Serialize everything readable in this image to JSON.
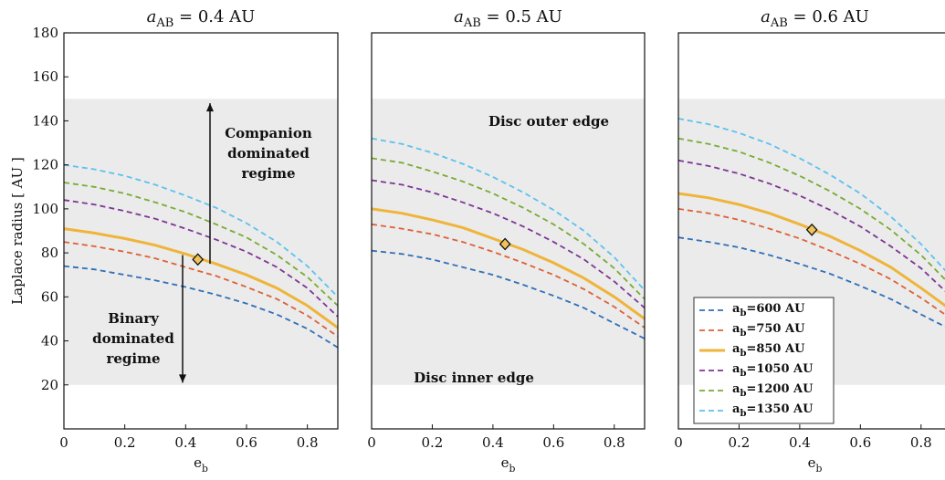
{
  "chart_data": [
    {
      "type": "line",
      "title_symbol": "a",
      "title_subscript": "AB",
      "title_value": "= 0.4 AU",
      "xlabel": "e",
      "xlabel_sub": "b",
      "ylabel": "Laplace radius [ AU ]",
      "xlim": [
        0,
        0.9
      ],
      "ylim": [
        0,
        180
      ],
      "xticks": [
        "0",
        "0.2",
        "0.4",
        "0.6",
        "0.8"
      ],
      "yticks": [
        "20",
        "40",
        "60",
        "80",
        "100",
        "120",
        "140",
        "160",
        "180"
      ],
      "band": [
        20,
        150
      ],
      "x": [
        0,
        0.1,
        0.2,
        0.3,
        0.4,
        0.5,
        0.6,
        0.7,
        0.8,
        0.9
      ],
      "series": [
        {
          "name": "a_b=600 AU",
          "style": "dashed",
          "color": "#2f6fb7",
          "values": [
            74,
            72.5,
            70,
            67.5,
            64.5,
            61,
            57,
            52,
            45.5,
            37
          ]
        },
        {
          "name": "a_b=750 AU",
          "style": "dashed",
          "color": "#dd6035",
          "values": [
            85,
            83,
            80.5,
            77.5,
            73.5,
            69.5,
            64.5,
            59,
            51.5,
            42
          ]
        },
        {
          "name": "a_b=850 AU",
          "style": "solid",
          "color": "#efb43a",
          "values": [
            91,
            89,
            86.5,
            83.5,
            79.5,
            75,
            70,
            64,
            56,
            46
          ]
        },
        {
          "name": "a_b=1050 AU",
          "style": "dashed",
          "color": "#7e3594",
          "values": [
            104,
            102,
            99,
            95.5,
            91,
            86,
            80.5,
            73.5,
            64,
            51
          ]
        },
        {
          "name": "a_b=1200 AU",
          "style": "dashed",
          "color": "#78ab32",
          "values": [
            112,
            110,
            107,
            103,
            98.5,
            93,
            87,
            79,
            69,
            56
          ]
        },
        {
          "name": "a_b=1350 AU",
          "style": "dashed",
          "color": "#5bc2ee",
          "values": [
            120,
            118,
            115,
            111,
            106,
            100.5,
            93.5,
            85,
            74,
            60
          ]
        }
      ],
      "marker": {
        "x": 0.44,
        "y": 77
      },
      "annotations": {
        "companion": [
          "Companion",
          "dominated",
          "regime"
        ],
        "binary": [
          "Binary",
          "dominated",
          "regime"
        ]
      },
      "arrows": [
        {
          "x": 0.48,
          "from": 75,
          "to": 148
        },
        {
          "x": 0.39,
          "from": 79,
          "to": 21
        }
      ]
    },
    {
      "type": "line",
      "title_symbol": "a",
      "title_subscript": "AB",
      "title_value": "= 0.5 AU",
      "xlabel": "e",
      "xlabel_sub": "b",
      "xlim": [
        0,
        0.9
      ],
      "ylim": [
        0,
        180
      ],
      "xticks": [
        "0",
        "0.2",
        "0.4",
        "0.6",
        "0.8"
      ],
      "band": [
        20,
        150
      ],
      "x": [
        0,
        0.1,
        0.2,
        0.3,
        0.4,
        0.5,
        0.6,
        0.7,
        0.8,
        0.9
      ],
      "series": [
        {
          "name": "a_b=600 AU",
          "style": "dashed",
          "color": "#2f6fb7",
          "values": [
            81,
            79.5,
            77,
            73.5,
            70,
            65.5,
            60.5,
            55,
            48,
            41
          ]
        },
        {
          "name": "a_b=750 AU",
          "style": "dashed",
          "color": "#dd6035",
          "values": [
            93,
            91,
            88.5,
            85,
            80.5,
            75.5,
            70,
            63.5,
            55.5,
            46
          ]
        },
        {
          "name": "a_b=850 AU",
          "style": "solid",
          "color": "#efb43a",
          "values": [
            100,
            98,
            95,
            91.5,
            86.5,
            81.5,
            75.5,
            68.5,
            60,
            50
          ]
        },
        {
          "name": "a_b=1050 AU",
          "style": "dashed",
          "color": "#7e3594",
          "values": [
            113,
            111,
            107.5,
            103,
            98,
            92,
            85,
            77,
            67,
            55
          ]
        },
        {
          "name": "a_b=1200 AU",
          "style": "dashed",
          "color": "#78ab32",
          "values": [
            123,
            121,
            117,
            112.5,
            107,
            100.5,
            93,
            84,
            73,
            59
          ]
        },
        {
          "name": "a_b=1350 AU",
          "style": "dashed",
          "color": "#5bc2ee",
          "values": [
            132,
            129.5,
            125.5,
            120.5,
            114.5,
            107.5,
            99.5,
            90,
            78,
            63
          ]
        }
      ],
      "marker": {
        "x": 0.44,
        "y": 84
      },
      "annotations": {
        "outer": "Disc outer edge",
        "inner": "Disc inner edge"
      }
    },
    {
      "type": "line",
      "title_symbol": "a",
      "title_subscript": "AB",
      "title_value": "= 0.6 AU",
      "xlabel": "e",
      "xlabel_sub": "b",
      "xlim": [
        0,
        0.9
      ],
      "ylim": [
        0,
        180
      ],
      "xticks": [
        "0",
        "0.2",
        "0.4",
        "0.6",
        "0.8"
      ],
      "band": [
        20,
        150
      ],
      "x": [
        0,
        0.1,
        0.2,
        0.3,
        0.4,
        0.5,
        0.6,
        0.7,
        0.8,
        0.9
      ],
      "series": [
        {
          "name": "a_b=600 AU",
          "style": "dashed",
          "color": "#2f6fb7",
          "values": [
            87,
            85,
            82.5,
            79,
            75,
            70.5,
            65,
            59,
            52,
            45
          ]
        },
        {
          "name": "a_b=750 AU",
          "style": "dashed",
          "color": "#dd6035",
          "values": [
            100,
            98,
            95,
            91,
            86.5,
            81,
            75,
            68,
            59.5,
            50
          ]
        },
        {
          "name": "a_b=850 AU",
          "style": "solid",
          "color": "#efb43a",
          "values": [
            107,
            105,
            102,
            98,
            93,
            87.5,
            81,
            73.5,
            64,
            54
          ]
        },
        {
          "name": "a_b=1050 AU",
          "style": "dashed",
          "color": "#7e3594",
          "values": [
            122,
            119.5,
            116,
            111.5,
            106,
            99.5,
            92,
            83,
            73,
            60
          ]
        },
        {
          "name": "a_b=1200 AU",
          "style": "dashed",
          "color": "#78ab32",
          "values": [
            132,
            129.5,
            126,
            121,
            115,
            108,
            100,
            90.5,
            79,
            65
          ]
        },
        {
          "name": "a_b=1350 AU",
          "style": "dashed",
          "color": "#5bc2ee",
          "values": [
            141,
            138.5,
            134.5,
            129.5,
            123,
            115.5,
            107,
            96.5,
            84,
            69
          ]
        }
      ],
      "marker": {
        "x": 0.44,
        "y": 90.5
      },
      "legend": {
        "placement": "bottom-left",
        "entries": [
          {
            "prefix": "a",
            "sub": "b",
            "suffix": "=600 AU"
          },
          {
            "prefix": "a",
            "sub": "b",
            "suffix": "=750 AU"
          },
          {
            "prefix": "a",
            "sub": "b",
            "suffix": "=850 AU"
          },
          {
            "prefix": "a",
            "sub": "b",
            "suffix": "=1050 AU"
          },
          {
            "prefix": "a",
            "sub": "b",
            "suffix": "=1200 AU"
          },
          {
            "prefix": "a",
            "sub": "b",
            "suffix": "=1350 AU"
          }
        ]
      }
    }
  ]
}
